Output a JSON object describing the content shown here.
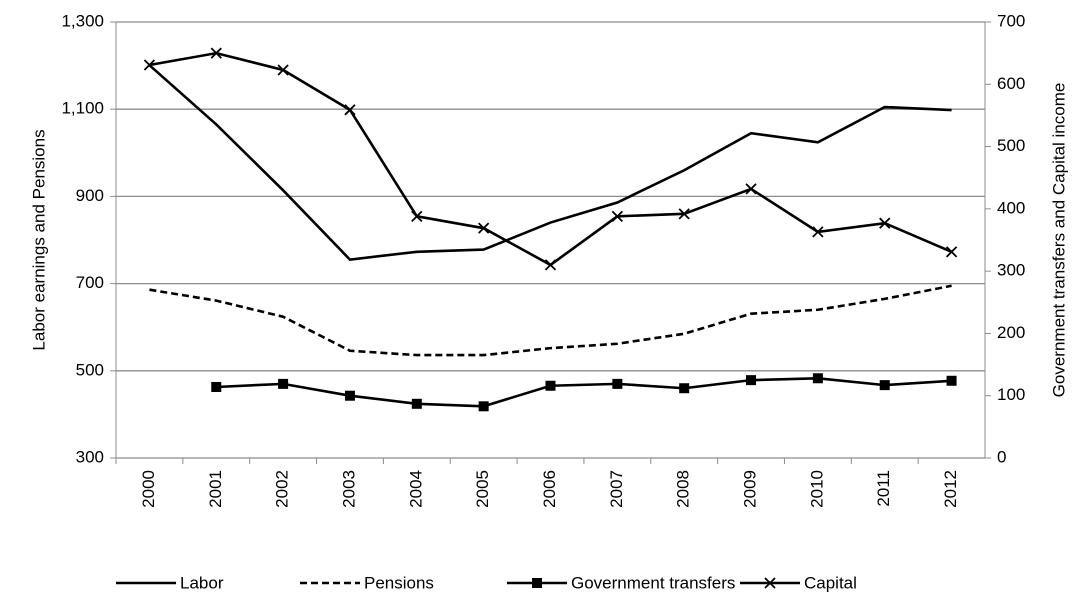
{
  "chart_data": {
    "type": "line",
    "y_label": "Labor earnings and Pensions",
    "y2_label": "Government transfers and Capital income",
    "categories": [
      "2000",
      "2001",
      "2002",
      "2003",
      "2004",
      "2005",
      "2006",
      "2007",
      "2008",
      "2009",
      "2010",
      "2011",
      "2012"
    ],
    "ylim": [
      300,
      1300
    ],
    "yticks": [
      300,
      500,
      700,
      900,
      {
        "value": 1100,
        "label": "1,100"
      },
      {
        "value": 1300,
        "label": "1,300"
      }
    ],
    "y2lim": [
      0,
      700
    ],
    "y2ticks": [
      0,
      100,
      200,
      300,
      400,
      500,
      600,
      700
    ],
    "grid": true,
    "legend": "bottom",
    "series": [
      {
        "name": "Labor",
        "color": "#000000",
        "style": "solid",
        "marker": "none",
        "values": [
          1201,
          1065,
          914,
          755,
          773,
          778,
          840,
          886,
          960,
          1045,
          1024,
          1105,
          1098
        ]
      },
      {
        "name": "Pensions",
        "color": "#000000",
        "style": "dashed",
        "marker": "none",
        "values": [
          686,
          661,
          624,
          546,
          536,
          536,
          552,
          562,
          585,
          631,
          640,
          665,
          695
        ]
      },
      {
        "name": "Government transfers",
        "color": "#000000",
        "style": "solid",
        "marker": "square",
        "axis": "y2",
        "values": [
          null,
          114,
          119,
          100,
          87,
          83,
          116,
          119,
          112,
          125,
          128,
          117,
          124
        ]
      },
      {
        "name": "Capital",
        "color": "#000000",
        "style": "solid",
        "marker": "x",
        "axis": "y2",
        "values": [
          631,
          650,
          623,
          559,
          388,
          369,
          310,
          388,
          392,
          432,
          363,
          377,
          331
        ]
      }
    ]
  }
}
